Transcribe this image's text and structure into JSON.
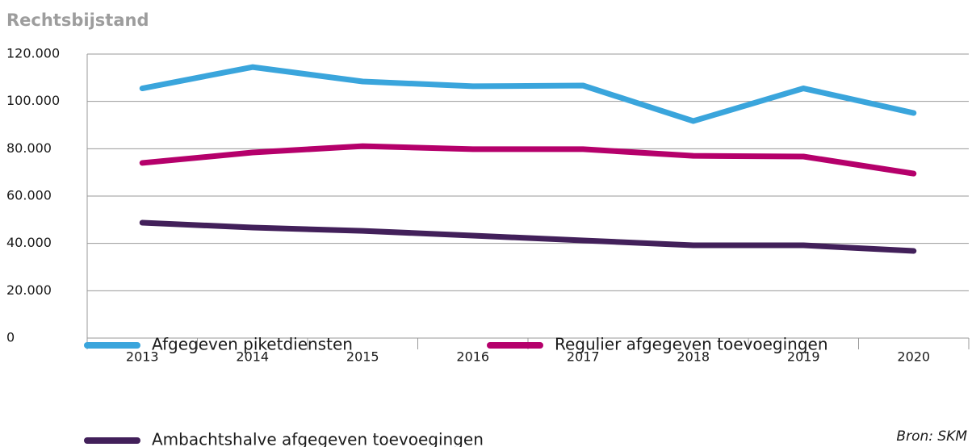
{
  "chart_data": {
    "type": "line",
    "title": "Rechtsbijstand",
    "source": "Bron: SKM",
    "categories": [
      "2013",
      "2014",
      "2015",
      "2016",
      "2017",
      "2018",
      "2019",
      "2020"
    ],
    "series": [
      {
        "name": "Afgegeven piketdiensten",
        "color": "#3aa5dc",
        "values": [
          105500,
          114500,
          108400,
          106400,
          106700,
          91700,
          105500,
          95100
        ]
      },
      {
        "name": "Regulier afgegeven toevoegingen",
        "color": "#b5006b",
        "values": [
          74000,
          78400,
          81100,
          79800,
          79800,
          77000,
          76700,
          69500
        ]
      },
      {
        "name": "Ambachtshalve afgegeven toevoegingen",
        "color": "#42205a",
        "values": [
          48750,
          46700,
          45300,
          43300,
          41250,
          39200,
          39200,
          36800
        ]
      }
    ],
    "ylim": [
      0,
      120000
    ],
    "yticks": [
      0,
      {
        "value": 20000,
        "label": "20.000"
      },
      {
        "value": 40000,
        "label": "40.000"
      },
      {
        "value": 60000,
        "label": "60.000"
      },
      {
        "value": 80000,
        "label": "80.000"
      },
      {
        "value": 100000,
        "label": "100.000"
      },
      {
        "value": 120000,
        "label": "120.000"
      }
    ],
    "grid": true
  }
}
